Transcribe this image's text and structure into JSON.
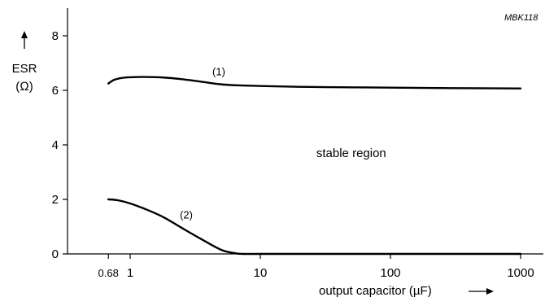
{
  "chart_data": {
    "type": "line",
    "figure_code": "MBK118",
    "xlabel": "output capacitor (µF)",
    "ylabel_line1": "ESR",
    "ylabel_line2": "(Ω)",
    "x_scale": "log",
    "xlim": [
      0.5,
      1500
    ],
    "ylim": [
      0,
      9
    ],
    "x_ticks": [
      {
        "value": 0.68,
        "label": "0.68"
      },
      {
        "value": 1,
        "label": "1"
      },
      {
        "value": 10,
        "label": "10"
      },
      {
        "value": 100,
        "label": "100"
      },
      {
        "value": 1000,
        "label": "1000"
      }
    ],
    "y_ticks": [
      {
        "value": 0,
        "label": "0"
      },
      {
        "value": 2,
        "label": "2"
      },
      {
        "value": 4,
        "label": "4"
      },
      {
        "value": 6,
        "label": "6"
      },
      {
        "value": 8,
        "label": "8"
      }
    ],
    "series": [
      {
        "label": "(1)",
        "label_at": {
          "x": 4.8,
          "y": 6.55
        },
        "x": [
          0.68,
          0.75,
          0.85,
          1,
          1.3,
          1.8,
          2.5,
          3.5,
          5,
          7,
          10,
          20,
          50,
          100,
          300,
          1000
        ],
        "y": [
          6.25,
          6.38,
          6.45,
          6.48,
          6.49,
          6.47,
          6.41,
          6.32,
          6.22,
          6.18,
          6.16,
          6.13,
          6.11,
          6.1,
          6.08,
          6.07
        ]
      },
      {
        "label": "(2)",
        "label_at": {
          "x": 2.7,
          "y": 1.3
        },
        "x": [
          0.68,
          0.8,
          1,
          1.3,
          1.8,
          2.5,
          3.5,
          5,
          6.5,
          7.5,
          10,
          100,
          1000
        ],
        "y": [
          2.0,
          1.97,
          1.85,
          1.65,
          1.35,
          0.95,
          0.55,
          0.15,
          0.02,
          0.0,
          0.0,
          0.0,
          0.0
        ]
      }
    ],
    "annotations": [
      {
        "text": "stable region",
        "at": {
          "x": 50,
          "y": 3.55
        }
      }
    ]
  }
}
